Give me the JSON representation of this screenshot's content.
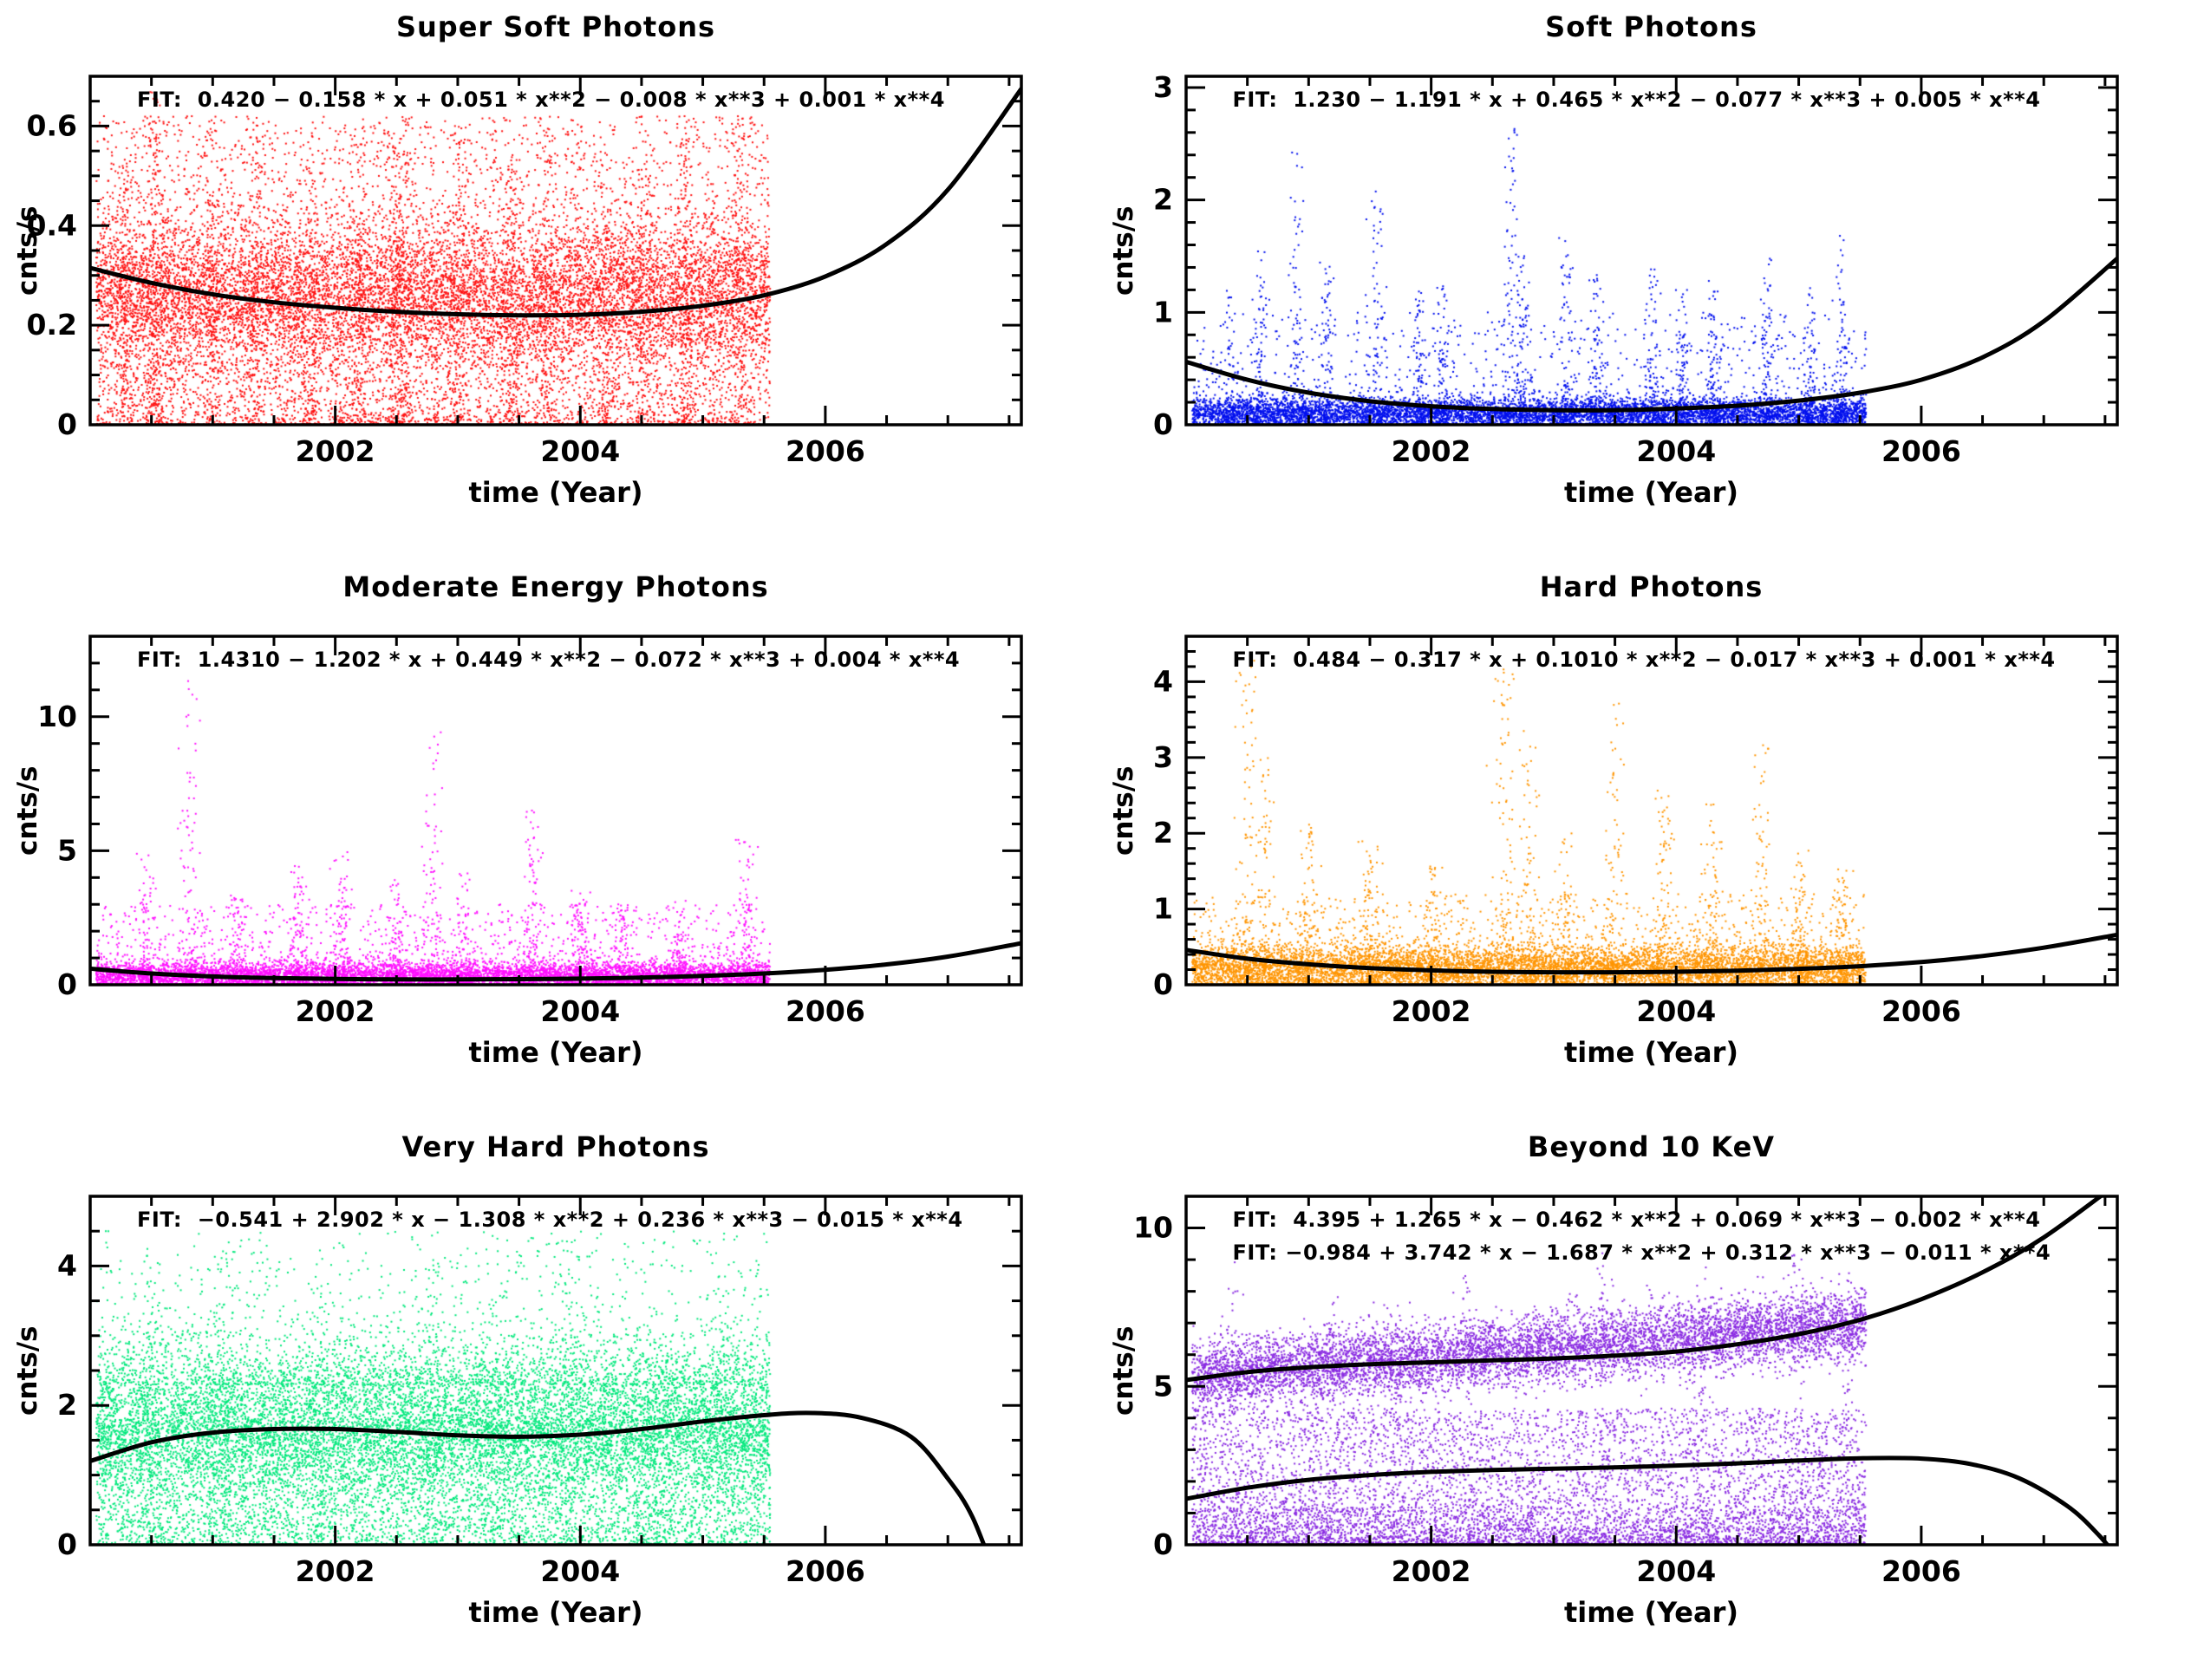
{
  "page": {
    "background": "#ffffff",
    "text_color": "#000000"
  },
  "chart_data": [
    {
      "id": "super-soft-photons",
      "type": "scatter",
      "title": "Super Soft Photons",
      "xlabel": "time (Year)",
      "ylabel": "cnts/s",
      "fit_labels": [
        "FIT:  0.420 − 0.158 * x + 0.051 * x**2 − 0.008 * x**3 + 0.001 * x**4"
      ],
      "color": "#ff1010",
      "xlim": [
        2000,
        2007.6
      ],
      "ylim": [
        0,
        0.7
      ],
      "xticks": [
        2002,
        2004,
        2006
      ],
      "xtick_labels": [
        "2002",
        "2004",
        "2006"
      ],
      "xtick_minor_step": 0.5,
      "yticks": [
        0,
        0.2,
        0.4,
        0.6
      ],
      "ytick_labels": [
        "0",
        "0.2",
        "0.4",
        "0.6"
      ],
      "ytick_minor_step": 0.05,
      "data_x_range": [
        2000.05,
        2005.55
      ],
      "fit_curves": [
        [
          [
            2000,
            0.315
          ],
          [
            2000.5,
            0.285
          ],
          [
            2001,
            0.262
          ],
          [
            2001.5,
            0.246
          ],
          [
            2002,
            0.235
          ],
          [
            2002.5,
            0.227
          ],
          [
            2003,
            0.222
          ],
          [
            2003.5,
            0.22
          ],
          [
            2004,
            0.221
          ],
          [
            2004.5,
            0.227
          ],
          [
            2005,
            0.239
          ],
          [
            2005.5,
            0.26
          ],
          [
            2006,
            0.298
          ],
          [
            2006.5,
            0.363
          ],
          [
            2007,
            0.472
          ],
          [
            2007.6,
            0.675
          ]
        ]
      ],
      "scatter": {
        "seed": 11,
        "components": [
          {
            "kind": "band",
            "n": 9000,
            "mean": 0.26,
            "sigma": 0.075
          },
          {
            "kind": "spread",
            "n": 5000,
            "min": 0.0,
            "max": 0.62,
            "power": 1.6
          },
          {
            "kind": "bursts",
            "centers": [
              2000.3,
              2000.5,
              2000.55,
              2001.0,
              2001.35,
              2001.8,
              2002.2,
              2002.5,
              2002.55,
              2003.0,
              2003.45,
              2003.75,
              2004.2,
              2004.5,
              2004.85,
              2005.3
            ],
            "maxes": [
              0.55,
              0.67,
              0.6,
              0.62,
              0.6,
              0.55,
              0.58,
              0.62,
              0.55,
              0.6,
              0.55,
              0.62,
              0.55,
              0.6,
              0.63,
              0.62
            ],
            "n_per": 130,
            "width": 0.04,
            "power": 1.5
          }
        ]
      }
    },
    {
      "id": "soft-photons",
      "type": "scatter",
      "title": "Soft Photons",
      "xlabel": "time (Year)",
      "ylabel": "cnts/s",
      "fit_labels": [
        "FIT:  1.230 − 1.191 * x + 0.465 * x**2 − 0.077 * x**3 + 0.005 * x**4"
      ],
      "color": "#0010ee",
      "xlim": [
        2000,
        2007.6
      ],
      "ylim": [
        0,
        3.1
      ],
      "xticks": [
        2002,
        2004,
        2006
      ],
      "xtick_labels": [
        "2002",
        "2004",
        "2006"
      ],
      "xtick_minor_step": 0.5,
      "yticks": [
        0,
        1,
        2,
        3
      ],
      "ytick_labels": [
        "0",
        "1",
        "2",
        "3"
      ],
      "ytick_minor_step": 0.2,
      "data_x_range": [
        2000.05,
        2005.55
      ],
      "fit_curves": [
        [
          [
            2000,
            0.56
          ],
          [
            2000.5,
            0.4
          ],
          [
            2001,
            0.285
          ],
          [
            2001.5,
            0.21
          ],
          [
            2002,
            0.165
          ],
          [
            2002.5,
            0.14
          ],
          [
            2003,
            0.13
          ],
          [
            2003.5,
            0.13
          ],
          [
            2004,
            0.145
          ],
          [
            2004.5,
            0.17
          ],
          [
            2005,
            0.215
          ],
          [
            2005.5,
            0.285
          ],
          [
            2006,
            0.4
          ],
          [
            2006.5,
            0.6
          ],
          [
            2007,
            0.92
          ],
          [
            2007.6,
            1.48
          ]
        ]
      ],
      "scatter": {
        "seed": 22,
        "components": [
          {
            "kind": "band",
            "n": 6500,
            "mean": 0.1,
            "sigma": 0.07
          },
          {
            "kind": "spread",
            "n": 1500,
            "min": 0,
            "max": 1.0,
            "power": 2.5
          },
          {
            "kind": "bursts",
            "centers": [
              2000.35,
              2000.6,
              2000.9,
              2001.15,
              2001.55,
              2001.9,
              2002.1,
              2002.65,
              2002.75,
              2003.1,
              2003.35,
              2003.8,
              2004.05,
              2004.3,
              2004.75,
              2005.1,
              2005.35
            ],
            "maxes": [
              1.3,
              1.6,
              2.75,
              1.45,
              2.1,
              1.2,
              1.25,
              2.65,
              1.5,
              1.7,
              1.35,
              1.45,
              1.2,
              1.35,
              1.5,
              1.25,
              1.7
            ],
            "n_per": 95,
            "width": 0.03,
            "power": 2.3
          }
        ]
      }
    },
    {
      "id": "moderate-energy-photons",
      "type": "scatter",
      "title": "Moderate Energy Photons",
      "xlabel": "time (Year)",
      "ylabel": "cnts/s",
      "fit_labels": [
        "FIT:  1.4310 − 1.202 * x + 0.449 * x**2 − 0.072 * x**3 + 0.004 * x**4"
      ],
      "color": "#ff10ff",
      "xlim": [
        2000,
        2007.6
      ],
      "ylim": [
        0,
        13
      ],
      "xticks": [
        2002,
        2004,
        2006
      ],
      "xtick_labels": [
        "2002",
        "2004",
        "2006"
      ],
      "xtick_minor_step": 0.5,
      "yticks": [
        0,
        5,
        10
      ],
      "ytick_labels": [
        "0",
        "5",
        "10"
      ],
      "ytick_minor_step": 1,
      "data_x_range": [
        2000.05,
        2005.55
      ],
      "fit_curves": [
        [
          [
            2000,
            0.6
          ],
          [
            2000.5,
            0.42
          ],
          [
            2001,
            0.31
          ],
          [
            2001.5,
            0.25
          ],
          [
            2002,
            0.22
          ],
          [
            2002.5,
            0.2
          ],
          [
            2003,
            0.2
          ],
          [
            2003.5,
            0.21
          ],
          [
            2004,
            0.23
          ],
          [
            2004.5,
            0.27
          ],
          [
            2005,
            0.33
          ],
          [
            2005.5,
            0.42
          ],
          [
            2006,
            0.56
          ],
          [
            2006.5,
            0.76
          ],
          [
            2007,
            1.05
          ],
          [
            2007.6,
            1.55
          ]
        ]
      ],
      "scatter": {
        "seed": 33,
        "components": [
          {
            "kind": "band",
            "n": 6000,
            "mean": 0.35,
            "sigma": 0.25
          },
          {
            "kind": "spread",
            "n": 1800,
            "min": 0,
            "max": 3.0,
            "power": 2.4
          },
          {
            "kind": "bursts",
            "centers": [
              2000.45,
              2000.8,
              2001.2,
              2001.7,
              2002.05,
              2002.5,
              2002.8,
              2003.05,
              2003.6,
              2004.0,
              2004.35,
              2004.8,
              2005.35
            ],
            "maxes": [
              5.0,
              11.5,
              3.5,
              4.5,
              5.2,
              4.0,
              9.8,
              4.2,
              7.0,
              3.6,
              3.0,
              3.2,
              5.5
            ],
            "n_per": 120,
            "width": 0.04,
            "power": 2.6
          }
        ]
      }
    },
    {
      "id": "hard-photons",
      "type": "scatter",
      "title": "Hard Photons",
      "xlabel": "time (Year)",
      "ylabel": "cnts/s",
      "fit_labels": [
        "FIT:  0.484 − 0.317 * x + 0.1010 * x**2 − 0.017 * x**3 + 0.001 * x**4"
      ],
      "color": "#ff9500",
      "xlim": [
        2000,
        2007.6
      ],
      "ylim": [
        0,
        4.6
      ],
      "xticks": [
        2002,
        2004,
        2006
      ],
      "xtick_labels": [
        "2002",
        "2004",
        "2006"
      ],
      "xtick_minor_step": 0.5,
      "yticks": [
        0,
        1,
        2,
        3,
        4
      ],
      "ytick_labels": [
        "0",
        "1",
        "2",
        "3",
        "4"
      ],
      "ytick_minor_step": 0.2,
      "data_x_range": [
        2000.05,
        2005.55
      ],
      "fit_curves": [
        [
          [
            2000,
            0.46
          ],
          [
            2000.5,
            0.345
          ],
          [
            2001,
            0.27
          ],
          [
            2001.5,
            0.22
          ],
          [
            2002,
            0.19
          ],
          [
            2002.5,
            0.172
          ],
          [
            2003,
            0.165
          ],
          [
            2003.5,
            0.165
          ],
          [
            2004,
            0.172
          ],
          [
            2004.5,
            0.187
          ],
          [
            2005,
            0.21
          ],
          [
            2005.5,
            0.245
          ],
          [
            2006,
            0.3
          ],
          [
            2006.5,
            0.38
          ],
          [
            2007,
            0.49
          ],
          [
            2007.6,
            0.66
          ]
        ]
      ],
      "scatter": {
        "seed": 44,
        "components": [
          {
            "kind": "band",
            "n": 7000,
            "mean": 0.22,
            "sigma": 0.15
          },
          {
            "kind": "spread",
            "n": 1800,
            "min": 0,
            "max": 1.2,
            "power": 2.2
          },
          {
            "kind": "bursts",
            "centers": [
              2000.5,
              2000.65,
              2001.0,
              2001.5,
              2002.0,
              2002.6,
              2002.8,
              2003.1,
              2003.5,
              2003.9,
              2004.3,
              2004.7,
              2005.0,
              2005.35
            ],
            "maxes": [
              4.3,
              3.0,
              2.2,
              1.9,
              1.6,
              4.2,
              3.4,
              2.0,
              3.9,
              2.6,
              2.4,
              3.2,
              1.8,
              1.6
            ],
            "n_per": 110,
            "width": 0.04,
            "power": 2.4
          }
        ]
      }
    },
    {
      "id": "very-hard-photons",
      "type": "scatter",
      "title": "Very Hard  Photons",
      "xlabel": "time (Year)",
      "ylabel": "cnts/s",
      "fit_labels": [
        "FIT:  −0.541 + 2.902 * x − 1.308 * x**2 + 0.236 * x**3 − 0.015 * x**4"
      ],
      "color": "#00e87c",
      "xlim": [
        2000,
        2007.6
      ],
      "ylim": [
        0,
        5
      ],
      "xticks": [
        2002,
        2004,
        2006
      ],
      "xtick_labels": [
        "2002",
        "2004",
        "2006"
      ],
      "xtick_minor_step": 0.5,
      "yticks": [
        0,
        2,
        4
      ],
      "ytick_labels": [
        "0",
        "2",
        "4"
      ],
      "ytick_minor_step": 0.5,
      "data_x_range": [
        2000.05,
        2005.55
      ],
      "fit_curves": [
        [
          [
            2000,
            1.2
          ],
          [
            2000.5,
            1.47
          ],
          [
            2001,
            1.61
          ],
          [
            2001.5,
            1.66
          ],
          [
            2002,
            1.66
          ],
          [
            2002.5,
            1.62
          ],
          [
            2003,
            1.57
          ],
          [
            2003.5,
            1.55
          ],
          [
            2004,
            1.58
          ],
          [
            2004.5,
            1.66
          ],
          [
            2005,
            1.77
          ],
          [
            2005.5,
            1.86
          ],
          [
            2005.9,
            1.89
          ],
          [
            2006.3,
            1.82
          ],
          [
            2006.7,
            1.55
          ],
          [
            2007.0,
            0.95
          ],
          [
            2007.2,
            0.4
          ],
          [
            2007.4,
            -0.5
          ]
        ]
      ],
      "scatter": {
        "seed": 55,
        "components": [
          {
            "kind": "band",
            "n": 9500,
            "mean": 1.75,
            "sigma": 0.55
          },
          {
            "kind": "spread",
            "n": 4500,
            "min": 0,
            "max": 1.8,
            "power": 1.2
          },
          {
            "kind": "spread",
            "n": 1300,
            "min": 2.3,
            "max": 4.5,
            "power": 2.2
          },
          {
            "kind": "bursts",
            "centers": [
              2000.5,
              2001.1,
              2001.9,
              2002.8,
              2003.3,
              2003.9,
              2004.6,
              2005.2
            ],
            "maxes": [
              4.2,
              4.5,
              3.8,
              4.6,
              3.6,
              4.4,
              3.4,
              4.2
            ],
            "n_per": 90,
            "width": 0.05,
            "power": 1.8
          }
        ]
      }
    },
    {
      "id": "beyond-10-kev",
      "type": "scatter",
      "title": "Beyond 10 KeV",
      "xlabel": "time (Year)",
      "ylabel": "cnts/s",
      "fit_labels": [
        "FIT:  4.395 + 1.265 * x − 0.462 * x**2 + 0.069 * x**3 − 0.002 * x**4",
        "FIT: −0.984 + 3.742 * x − 1.687 * x**2 + 0.312 * x**3 − 0.011 * x**4"
      ],
      "color": "#8a2be2",
      "xlim": [
        2000,
        2007.6
      ],
      "ylim": [
        0,
        11
      ],
      "xticks": [
        2002,
        2004,
        2006
      ],
      "xtick_labels": [
        "2002",
        "2004",
        "2006"
      ],
      "xtick_minor_step": 0.5,
      "yticks": [
        0,
        5,
        10
      ],
      "ytick_labels": [
        "0",
        "5",
        "10"
      ],
      "ytick_minor_step": 1,
      "data_x_range": [
        2000.05,
        2005.55
      ],
      "fit_curves": [
        [
          [
            2000,
            5.2
          ],
          [
            2000.5,
            5.45
          ],
          [
            2001,
            5.6
          ],
          [
            2001.5,
            5.7
          ],
          [
            2002,
            5.76
          ],
          [
            2002.5,
            5.82
          ],
          [
            2003,
            5.88
          ],
          [
            2003.5,
            5.97
          ],
          [
            2004,
            6.1
          ],
          [
            2004.5,
            6.33
          ],
          [
            2005,
            6.65
          ],
          [
            2005.5,
            7.1
          ],
          [
            2006,
            7.75
          ],
          [
            2006.5,
            8.6
          ],
          [
            2007,
            9.7
          ],
          [
            2007.6,
            11.4
          ]
        ],
        [
          [
            2000,
            1.45
          ],
          [
            2000.5,
            1.8
          ],
          [
            2001,
            2.05
          ],
          [
            2001.5,
            2.2
          ],
          [
            2002,
            2.3
          ],
          [
            2002.5,
            2.36
          ],
          [
            2003,
            2.4
          ],
          [
            2003.5,
            2.44
          ],
          [
            2004,
            2.5
          ],
          [
            2004.5,
            2.57
          ],
          [
            2005,
            2.66
          ],
          [
            2005.5,
            2.73
          ],
          [
            2006,
            2.72
          ],
          [
            2006.4,
            2.55
          ],
          [
            2006.8,
            2.1
          ],
          [
            2007.2,
            1.2
          ],
          [
            2007.45,
            0.3
          ],
          [
            2007.6,
            -0.4
          ]
        ]
      ],
      "scatter": {
        "seed": 66,
        "components": [
          {
            "kind": "band",
            "n": 7500,
            "mean": 5.3,
            "mean_end": 7.0,
            "sigma": 0.55
          },
          {
            "kind": "spread",
            "n": 5200,
            "min": 0,
            "max": 4.3,
            "power": 1.5
          },
          {
            "kind": "spread",
            "n": 1600,
            "min": 0,
            "max": 1.2,
            "power": 2.0
          },
          {
            "kind": "bursts",
            "centers": [
              2000.4,
              2001.2,
              2002.3,
              2003.4,
              2004.2,
              2005.0,
              2005.4
            ],
            "maxes": [
              9.0,
              8.0,
              8.5,
              9.3,
              8.8,
              9.2,
              8.6
            ],
            "n_per": 60,
            "width": 0.04,
            "power": 1.4
          }
        ]
      }
    }
  ]
}
